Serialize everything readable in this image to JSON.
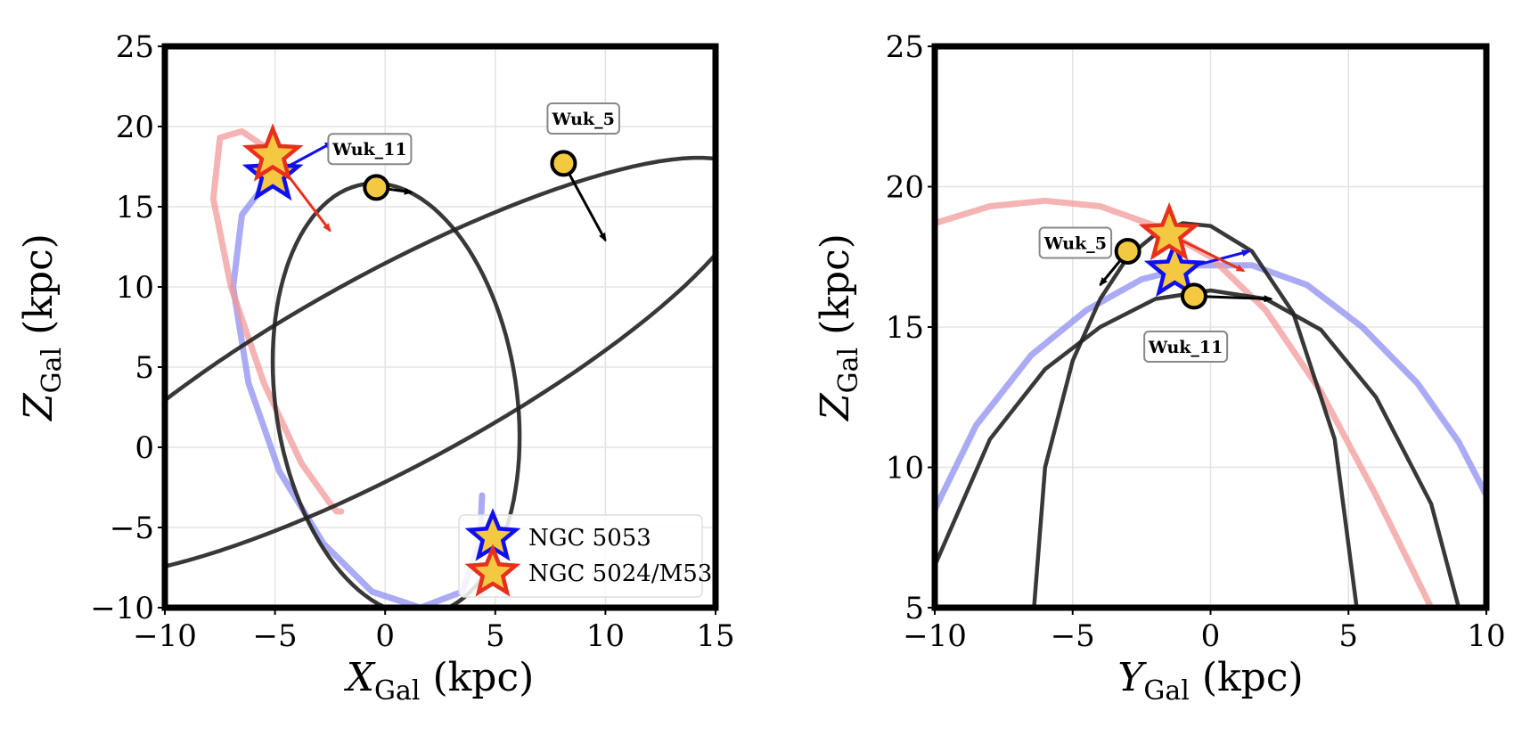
{
  "chart_data": [
    {
      "type": "line",
      "xlabel": {
        "main": "X",
        "sub": "Gal",
        "unit": " (kpc)"
      },
      "ylabel": {
        "main": "Z",
        "sub": "Gal",
        "unit": " (kpc)"
      },
      "xlim": [
        -10,
        15
      ],
      "ylim": [
        -10,
        25
      ],
      "xticks": [
        -10,
        -5,
        0,
        5,
        10,
        15
      ],
      "yticks": [
        -10,
        -5,
        0,
        5,
        10,
        15,
        20,
        25
      ],
      "xtick_labels": [
        "−10",
        "−5",
        "0",
        "5",
        "10",
        "15"
      ],
      "ytick_labels": [
        "−10",
        "−5",
        "0",
        "5",
        "10",
        "15",
        "20",
        "25"
      ],
      "grid": true,
      "legend_position": "lower-right",
      "series": [
        {
          "name": "NGC 5053",
          "color": "#8f8ff2",
          "x": [
            -5.1,
            -6.5,
            -6.9,
            -6.2,
            -4.8,
            -2.8,
            -0.6,
            1.6,
            3.5,
            4.3,
            4.4
          ],
          "y": [
            17.0,
            14.5,
            10.0,
            4.0,
            -1.5,
            -6.0,
            -9.0,
            -10.0,
            -9.0,
            -6.0,
            -3.0
          ]
        },
        {
          "name": "NGC 5024/M53",
          "color": "#f29a9a",
          "x": [
            -5.2,
            -6.5,
            -7.5,
            -7.8,
            -7.0,
            -5.5,
            -3.8,
            -2.5,
            -2.2,
            -2.0
          ],
          "y": [
            18.5,
            19.7,
            19.3,
            15.5,
            10.0,
            4.0,
            -1.0,
            -3.5,
            -4.0,
            -4.0
          ]
        },
        {
          "name": "Wuk_11",
          "color": "#222222",
          "type": "ellipse",
          "center": [
            0.5,
            3.0
          ],
          "radii": [
            5.5,
            13.5
          ],
          "angle_deg": 5
        },
        {
          "name": "Wuk_5",
          "color": "#222222",
          "type": "ellipse",
          "center": [
            0.5,
            5.0
          ],
          "radii": [
            5.5,
            20.0
          ],
          "angle_deg": -52
        }
      ],
      "markers": [
        {
          "name": "NGC 5053",
          "shape": "star",
          "edge": "#1010ee",
          "x": -5.1,
          "y": 17.0,
          "arrow": {
            "dx": 0.0,
            "dy": 0.0
          }
        },
        {
          "name": "NGC 5024/M53",
          "shape": "star",
          "edge": "#e8301c",
          "x": -5.1,
          "y": 18.2,
          "arrow": {
            "dx": 2.6,
            "dy": -4.7
          }
        },
        {
          "name": "Wuk_11",
          "shape": "circle",
          "edge": "#000000",
          "x": -0.4,
          "y": 16.2,
          "arrow": {
            "dx": 1.6,
            "dy": -0.3
          },
          "label": "Wuk_11",
          "label_x": -0.7,
          "label_y": 18.6
        },
        {
          "name": "Wuk_5",
          "shape": "circle",
          "edge": "#000000",
          "x": 8.1,
          "y": 17.7,
          "arrow": {
            "dx": 1.9,
            "dy": -4.8
          },
          "label": "Wuk_5",
          "label_x": 9.0,
          "label_y": 20.5
        }
      ],
      "extra_arrows": [
        {
          "color": "#1010ee",
          "x": -5.1,
          "y": 17.0,
          "dx": 2.7,
          "dy": 2.0
        }
      ],
      "legend": [
        {
          "label": "NGC 5053",
          "edge": "#1010ee"
        },
        {
          "label": "NGC 5024/M53",
          "edge": "#e8301c"
        }
      ]
    },
    {
      "type": "line",
      "xlabel": {
        "main": "Y",
        "sub": "Gal",
        "unit": " (kpc)"
      },
      "ylabel": {
        "main": "Z",
        "sub": "Gal",
        "unit": " (kpc)"
      },
      "xlim": [
        -10,
        10
      ],
      "ylim": [
        5,
        25
      ],
      "xticks": [
        -10,
        -5,
        0,
        5,
        10
      ],
      "yticks": [
        5,
        10,
        15,
        20,
        25
      ],
      "xtick_labels": [
        "−10",
        "−5",
        "0",
        "5",
        "10"
      ],
      "ytick_labels": [
        "5",
        "10",
        "15",
        "20",
        "25"
      ],
      "grid": true,
      "series": [
        {
          "name": "NGC 5053",
          "color": "#8f8ff2",
          "x": [
            -10,
            -8.5,
            -6.5,
            -4.5,
            -2.5,
            -0.5,
            1.5,
            3.5,
            5.5,
            7.5,
            9.0,
            10.0
          ],
          "y": [
            8.5,
            11.5,
            14.0,
            15.6,
            16.7,
            17.2,
            17.2,
            16.5,
            15.0,
            13.0,
            10.9,
            9.0
          ]
        },
        {
          "name": "NGC 5024/M53",
          "color": "#f29a9a",
          "x": [
            -10,
            -8.0,
            -6.0,
            -4.0,
            -2.0,
            0.0,
            2.0,
            4.0,
            6.0,
            7.0,
            8.0
          ],
          "y": [
            18.7,
            19.3,
            19.5,
            19.3,
            18.6,
            17.5,
            15.6,
            12.7,
            9.0,
            7.0,
            5.0
          ]
        },
        {
          "name": "Wuk_11",
          "color": "#222222",
          "x": [
            -10,
            -8.0,
            -6.0,
            -4.0,
            -2.0,
            0.0,
            2.0,
            4.0,
            6.0,
            8.0,
            9.0
          ],
          "y": [
            6.5,
            11.0,
            13.5,
            15.0,
            16.0,
            16.3,
            16.0,
            14.9,
            12.5,
            8.7,
            5.0
          ]
        },
        {
          "name": "Wuk_5",
          "color": "#222222",
          "x": [
            -6.4,
            -6.0,
            -5.0,
            -4.0,
            -3.0,
            -2.0,
            -1.0,
            0.0,
            1.5,
            3.0,
            4.5,
            5.3
          ],
          "y": [
            5.0,
            10.0,
            13.8,
            16.0,
            17.5,
            18.3,
            18.7,
            18.6,
            17.7,
            15.5,
            11.0,
            5.0
          ]
        }
      ],
      "markers": [
        {
          "name": "NGC 5053",
          "shape": "star",
          "edge": "#1010ee",
          "x": -1.3,
          "y": 17.0,
          "arrow": {
            "dx": 2.7,
            "dy": 0.7
          }
        },
        {
          "name": "NGC 5024/M53",
          "shape": "star",
          "edge": "#e8301c",
          "x": -1.5,
          "y": 18.3,
          "arrow": {
            "dx": 2.7,
            "dy": -1.3
          }
        },
        {
          "name": "Wuk_11",
          "shape": "circle",
          "edge": "#000000",
          "x": -0.6,
          "y": 16.1,
          "arrow": {
            "dx": 2.8,
            "dy": -0.1
          },
          "label": "Wuk_11",
          "label_x": -0.9,
          "label_y": 14.3
        },
        {
          "name": "Wuk_5",
          "shape": "circle",
          "edge": "#000000",
          "x": -3.0,
          "y": 17.7,
          "arrow": {
            "dx": -1.0,
            "dy": -1.2
          },
          "label": "Wuk_5",
          "label_x": -4.9,
          "label_y": 18.0
        }
      ],
      "extra_arrows": []
    }
  ]
}
